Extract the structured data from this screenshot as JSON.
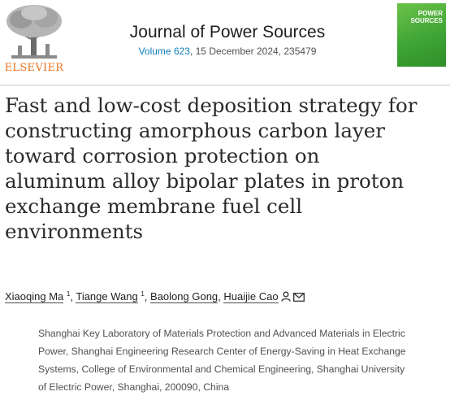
{
  "header": {
    "publisher": "ELSEVIER",
    "journal": "Journal of Power Sources",
    "volume_link": "Volume 623",
    "issue_info": ", 15 December 2024, 235479",
    "cover": {
      "line1": "POWER",
      "line2": "SOURCES"
    }
  },
  "article": {
    "title_lines": [
      "Fast and low-cost deposition strategy for",
      "constructing amorphous carbon layer",
      "toward corrosion protection on",
      "aluminum alloy bipolar plates in proton",
      "exchange membrane fuel cell",
      "environments"
    ],
    "authors": [
      {
        "name": "Xiaoqing Ma",
        "sup": "1"
      },
      {
        "name": "Tiange Wang",
        "sup": "1"
      },
      {
        "name": "Baolong Gong",
        "sup": ""
      },
      {
        "name": "Huaijie Cao",
        "sup": ""
      }
    ],
    "separator": ", ",
    "affiliation_lines": [
      "Shanghai Key Laboratory of Materials Protection and Advanced Materials in Electric",
      "Power, Shanghai Engineering Research Center of Energy-Saving in Heat Exchange",
      "Systems, College of Environmental and Chemical Engineering, Shanghai University",
      "of Electric Power, Shanghai, 200090, China"
    ]
  },
  "icons": {
    "person": "person-icon",
    "email": "envelope-icon"
  },
  "colors": {
    "publisher": "#e9711c",
    "link": "#0c7dbb",
    "cover": "#3fa535"
  }
}
